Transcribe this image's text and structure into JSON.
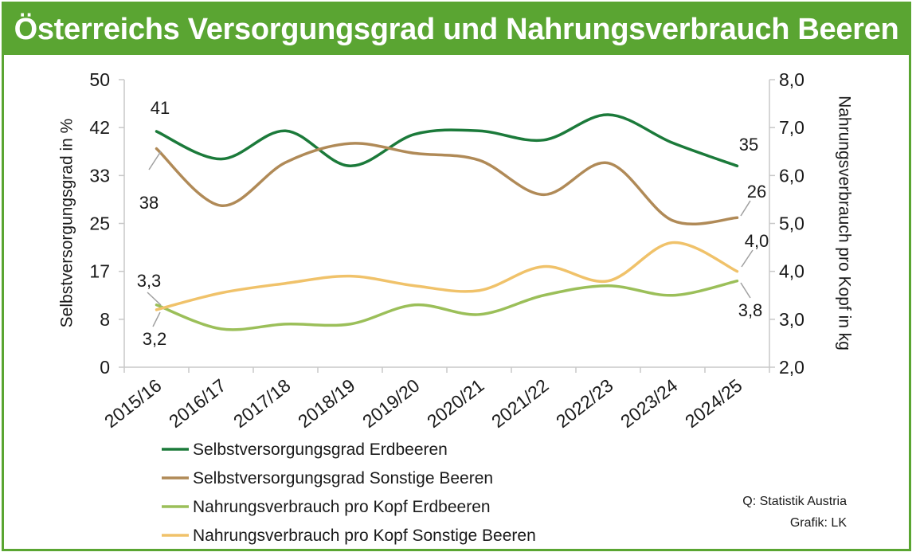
{
  "title": "Österreichs Versorgungsgrad und Nahrungsverbrauch Beeren",
  "source_lines": [
    "Q: Statistik Austria",
    "Grafik: LK"
  ],
  "colors": {
    "frame": "#5aa532",
    "erdbeeren_grad": "#1b7a3a",
    "sonstige_grad": "#b08a57",
    "erdbeeren_verbrauch": "#9bbf59",
    "sonstige_verbrauch": "#f0c26a"
  },
  "chart_data": {
    "type": "line",
    "categories": [
      "2015/16",
      "2016/17",
      "2017/18",
      "2018/19",
      "2019/20",
      "2020/21",
      "2021/22",
      "2022/23",
      "2023/24",
      "2024/25"
    ],
    "y_left": {
      "label": "Selbstversorgungsgrad in %",
      "ticks": [
        "50",
        "42",
        "33",
        "25",
        "17",
        "8",
        "0"
      ],
      "range": [
        0,
        50
      ]
    },
    "y_right": {
      "label": "Nahrungsverbrauch pro Kopf in kg",
      "ticks": [
        "8,0",
        "7,0",
        "6,0",
        "5,0",
        "4,0",
        "3,0",
        "2,0"
      ],
      "range": [
        2.0,
        8.0
      ]
    },
    "grid": false,
    "legend_position": "bottom",
    "series": [
      {
        "name": "Selbstversorgungsgrad Erdbeeren",
        "axis": "left",
        "color": "#1b7a3a",
        "values": [
          41,
          36.2,
          41.1,
          35,
          40.5,
          41.1,
          39.5,
          43.9,
          39,
          35
        ]
      },
      {
        "name": "Selbstversorgungsgrad Sonstige Beeren",
        "axis": "left",
        "color": "#b08a57",
        "values": [
          38,
          28.1,
          35.6,
          38.9,
          37.2,
          36,
          30,
          35.5,
          25.5,
          26
        ]
      },
      {
        "name": "Nahrungsverbrauch pro Kopf Erdbeeren",
        "axis": "right",
        "color": "#9bbf59",
        "values": [
          3.3,
          2.8,
          2.9,
          2.9,
          3.3,
          3.1,
          3.5,
          3.7,
          3.5,
          3.8
        ]
      },
      {
        "name": "Nahrungsverbrauch pro Kopf Sonstige Beeren",
        "axis": "right",
        "color": "#f0c26a",
        "values": [
          3.2,
          3.55,
          3.75,
          3.9,
          3.7,
          3.6,
          4.1,
          3.8,
          4.6,
          4.0
        ]
      }
    ],
    "annotations": [
      "41",
      "38",
      "35",
      "26",
      "3,3",
      "3,2",
      "4,0",
      "3,8"
    ]
  }
}
